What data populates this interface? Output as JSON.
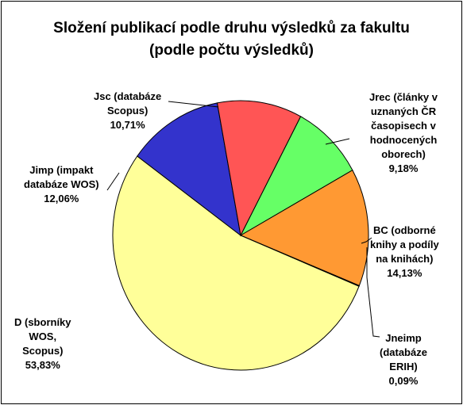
{
  "chart_data": {
    "type": "pie",
    "title": "Složení publikací podle druhu výsledků za fakultu",
    "subtitle": "(podle počtu výsledků)",
    "slices": [
      {
        "label": [
          "Jrec (články v",
          "uznaných ČR",
          "časopisech v",
          "hodnocených",
          "oborech)"
        ],
        "value_label": "9,18%",
        "value": 9.18,
        "color": "#66FF66"
      },
      {
        "label": [
          "BC (odborné",
          "knihy a podíly",
          "na knihách)"
        ],
        "value_label": "14,13%",
        "value": 14.13,
        "color": "#FF9933"
      },
      {
        "label": [
          "Jneimp",
          "(databáze",
          "ERIH)"
        ],
        "value_label": "0,09%",
        "value": 0.09,
        "color": "#663399"
      },
      {
        "label": [
          "D (sborníky",
          "WOS,",
          "Scopus)"
        ],
        "value_label": "53,83%",
        "value": 53.83,
        "color": "#FFFF99"
      },
      {
        "label": [
          "Jimp (impakt",
          "databáze WOS)"
        ],
        "value_label": "12,06%",
        "value": 12.06,
        "color": "#3333CC"
      },
      {
        "label": [
          "Jsc (databáze",
          "Scopus)"
        ],
        "value_label": "10,71%",
        "value": 10.71,
        "color": "#FF5555"
      }
    ]
  }
}
